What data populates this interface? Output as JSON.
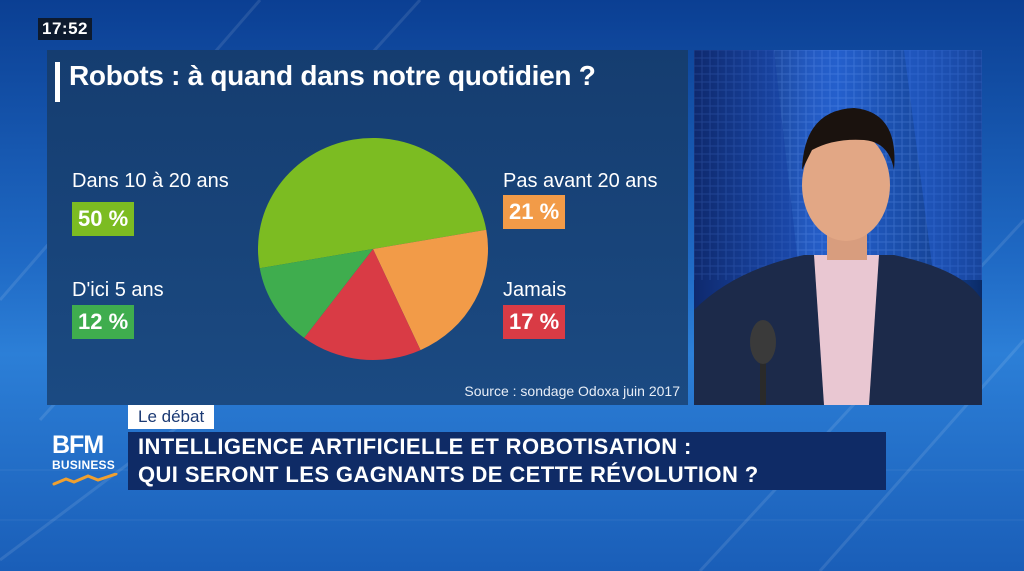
{
  "clock": "17:52",
  "chart_data": {
    "type": "pie",
    "title": "Robots : à quand dans notre quotidien ?",
    "slices": [
      {
        "label": "Dans 10 à 20 ans",
        "value": 50,
        "value_text": "50 %",
        "color": "#7cbc22"
      },
      {
        "label": "Pas avant 20 ans",
        "value": 21,
        "value_text": "21 %",
        "color": "#f29b48"
      },
      {
        "label": "Jamais",
        "value": 17,
        "value_text": "17 %",
        "color": "#d93b45"
      },
      {
        "label": "D'ici 5 ans",
        "value": 12,
        "value_text": "12 %",
        "color": "#3fad4e"
      }
    ],
    "source": "Source : sondage Odoxa juin 2017"
  },
  "ticker": {
    "tag": "Le débat",
    "line1": "INTELLIGENCE ARTIFICIELLE ET ROBOTISATION :",
    "line2": "QUI SERONT LES GAGNANTS DE CETTE RÉVOLUTION ?"
  },
  "logo": {
    "name": "BFM",
    "sub": "BUSINESS",
    "wave_color": "#f0a030"
  }
}
